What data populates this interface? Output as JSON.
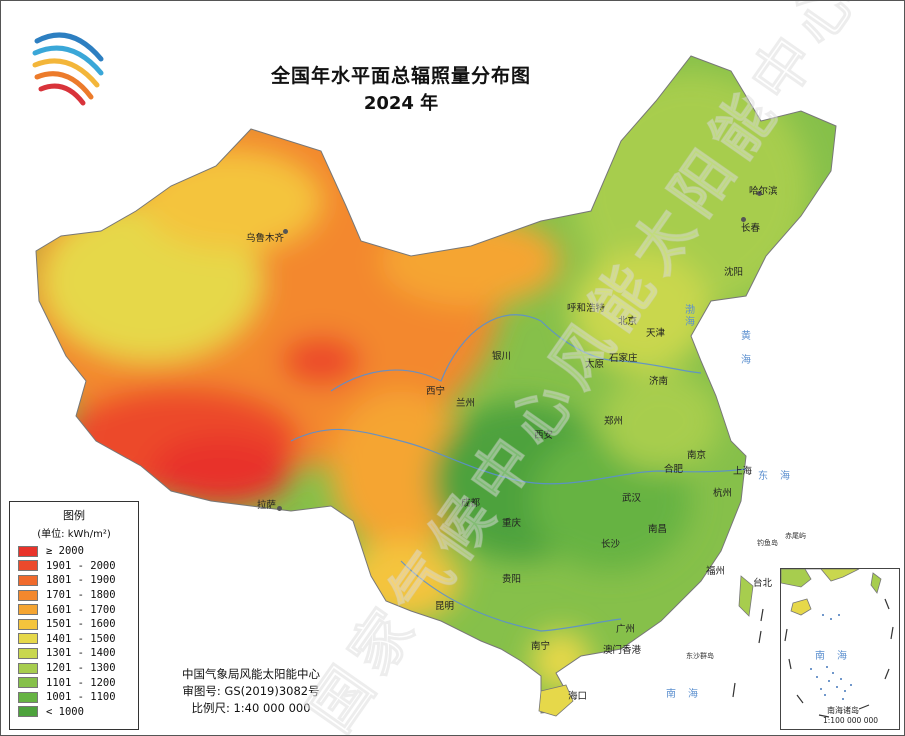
{
  "title": "全国年水平面总辐照量分布图",
  "year": "2024 年",
  "legend": {
    "title": "图例",
    "unit": "(单位: kWh/m²)",
    "classes": [
      {
        "label": "≥ 2000",
        "color": "#e8332a"
      },
      {
        "label": "1901 - 2000",
        "color": "#ec4a2c"
      },
      {
        "label": "1801 - 1900",
        "color": "#f06a2c"
      },
      {
        "label": "1701 - 1800",
        "color": "#f3882d"
      },
      {
        "label": "1601 - 1700",
        "color": "#f5a532"
      },
      {
        "label": "1501 - 1600",
        "color": "#f4c43c"
      },
      {
        "label": "1401 - 1500",
        "color": "#e6d84a"
      },
      {
        "label": "1301 - 1400",
        "color": "#c9d74e"
      },
      {
        "label": "1201 - 1300",
        "color": "#a7cd4e"
      },
      {
        "label": "1101 - 1200",
        "color": "#86c04a"
      },
      {
        "label": "1001 - 1100",
        "color": "#66b343"
      },
      {
        "label": "< 1000",
        "color": "#4da23c"
      }
    ]
  },
  "credits": {
    "org": "中国气象局风能太阳能中心",
    "review": "审图号: GS(2019)3082号",
    "scale": "比例尺: 1:40 000 000"
  },
  "cities": {
    "urumqi": "乌鲁木齐",
    "harbin": "哈尔滨",
    "changchun": "长春",
    "shenyang": "沈阳",
    "hohhot": "呼和浩特",
    "beijing": "北京",
    "tianjin": "天津",
    "yinchuan": "银川",
    "taiyuan": "太原",
    "shijiazhuang": "石家庄",
    "xining": "西宁",
    "lanzhou": "兰州",
    "jinan": "济南",
    "zhengzhou": "郑州",
    "xian": "西安",
    "nanjing": "南京",
    "hefei": "合肥",
    "shanghai": "上海",
    "chengdu": "成都",
    "wuhan": "武汉",
    "hangzhou": "杭州",
    "lhasa": "拉萨",
    "chongqing": "重庆",
    "nanchang": "南昌",
    "changsha": "长沙",
    "fuzhou": "福州",
    "guiyang": "贵阳",
    "taipei": "台北",
    "kunming": "昆明",
    "guangzhou": "广州",
    "nanning": "南宁",
    "macau_hk": "澳门香港",
    "haikou": "海口"
  },
  "seas": {
    "bohai": "渤海",
    "yellow": "黄海",
    "east": "东海",
    "south": "南海",
    "south_inset": "南海"
  },
  "islands": {
    "diaoyu": "钓鱼岛",
    "chiwei": "赤尾屿",
    "dongsha": "东沙群岛"
  },
  "inset": {
    "title": "南海诸岛",
    "scale": "1:100 000 000"
  },
  "watermark": "国家气候中心风能太阳能中心",
  "colors": {
    "water": "#5b8fcf",
    "border": "#777777"
  }
}
